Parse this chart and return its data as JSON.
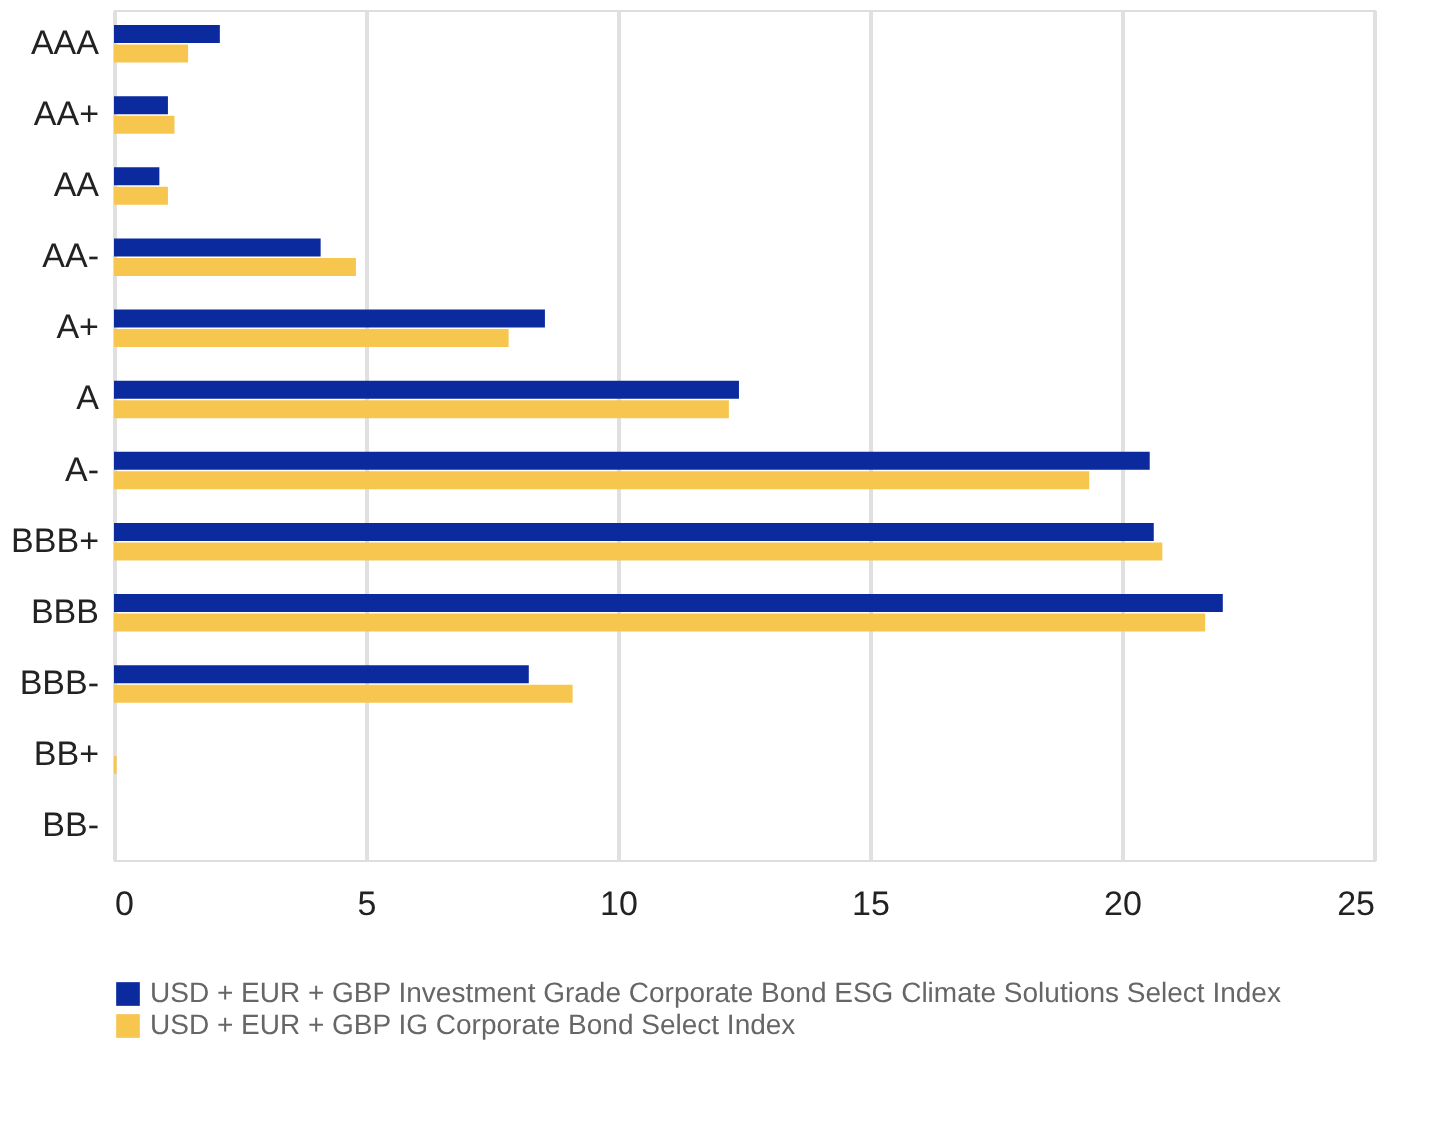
{
  "chart_data": {
    "type": "bar",
    "orientation": "horizontal",
    "categories": [
      "AAA",
      "AA+",
      "AA",
      "AA-",
      "A+",
      "A",
      "A-",
      "BBB+",
      "BBB",
      "BBB-",
      "BB+",
      "BB-"
    ],
    "series": [
      {
        "name": "USD + EUR + GBP Investment Grade Corporate Bond ESG Climate Solutions Select Index",
        "color": "#0a2a9e",
        "values": [
          2.1,
          1.07,
          0.9,
          4.1,
          8.55,
          12.4,
          20.55,
          20.63,
          22.0,
          8.23,
          null,
          null
        ]
      },
      {
        "name": "USD + EUR + GBP IG Corporate Bond Select Index",
        "color": "#f7c64f",
        "values": [
          1.47,
          1.2,
          1.07,
          4.8,
          7.83,
          12.2,
          19.35,
          20.8,
          21.65,
          9.1,
          0.05,
          null
        ]
      }
    ],
    "xlim": [
      0,
      25
    ],
    "xticks": [
      0,
      5,
      10,
      15,
      20,
      25
    ],
    "grid": "x",
    "legend": "bottom left"
  }
}
